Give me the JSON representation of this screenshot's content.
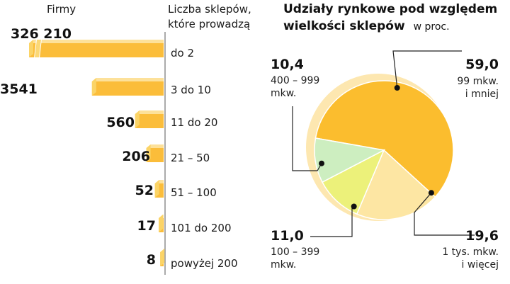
{
  "chart_data": [
    {
      "type": "bar",
      "header_left": "Firmy",
      "header_right_lines": [
        "Liczba sklepów,",
        "które prowadzą"
      ],
      "categories": [
        "do 2",
        "3 do 10",
        "11 do 20",
        "21 – 50",
        "51 – 100",
        "101 do 200",
        "powyżej 200"
      ],
      "values": [
        326210,
        3541,
        560,
        206,
        52,
        17,
        8
      ],
      "value_labels": [
        "326 210",
        "3541",
        "560",
        "206",
        "52",
        "17",
        "8"
      ],
      "colors": {
        "face": "#fbbd3a",
        "top": "#fde19a",
        "side": "#fbd467",
        "axis": "#8f8f8f"
      },
      "axis_broken": true
    },
    {
      "type": "pie",
      "title_lines": [
        "Udziały rynkowe pod względem",
        "wielkości sklepów"
      ],
      "subtitle": "w proc.",
      "slices": [
        {
          "value": 59.0,
          "value_label": "59,0",
          "desc_lines": [
            "99 mkw.",
            "i mniej"
          ],
          "color": "#fbbd2e"
        },
        {
          "value": 19.6,
          "value_label": "19,6",
          "desc_lines": [
            "1 tys. mkw.",
            "i więcej"
          ],
          "color": "#fde6a3"
        },
        {
          "value": 11.0,
          "value_label": "11,0",
          "desc_lines": [
            "100 – 399",
            "mkw."
          ],
          "color": "#ecf17a"
        },
        {
          "value": 10.4,
          "value_label": "10,4",
          "desc_lines": [
            "400 – 999",
            "mkw."
          ],
          "color": "#cdeec0"
        }
      ]
    }
  ]
}
